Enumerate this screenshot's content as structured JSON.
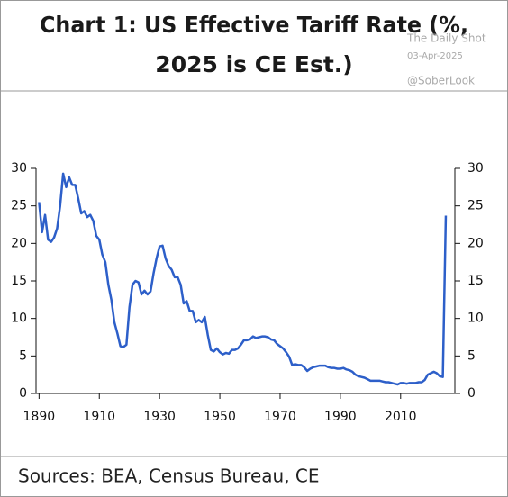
{
  "chart_data": {
    "type": "line",
    "title": [
      "Chart 1: US Effective Tariff Rate (%,",
      "2025 is CE Est.)"
    ],
    "watermark": [
      "The Daily Shot",
      "03-Apr-2025",
      "@SoberLook"
    ],
    "source": "Sources: BEA, Census Bureau, CE",
    "x": [
      1890,
      1891,
      1892,
      1893,
      1894,
      1895,
      1896,
      1897,
      1898,
      1899,
      1900,
      1901,
      1902,
      1903,
      1904,
      1905,
      1906,
      1907,
      1908,
      1909,
      1910,
      1911,
      1912,
      1913,
      1914,
      1915,
      1916,
      1917,
      1918,
      1919,
      1920,
      1921,
      1922,
      1923,
      1924,
      1925,
      1926,
      1927,
      1928,
      1929,
      1930,
      1931,
      1932,
      1933,
      1934,
      1935,
      1936,
      1937,
      1938,
      1939,
      1940,
      1941,
      1942,
      1943,
      1944,
      1945,
      1946,
      1947,
      1948,
      1949,
      1950,
      1951,
      1952,
      1953,
      1954,
      1955,
      1956,
      1957,
      1958,
      1959,
      1960,
      1961,
      1962,
      1963,
      1964,
      1965,
      1966,
      1967,
      1968,
      1969,
      1970,
      1971,
      1972,
      1973,
      1974,
      1975,
      1976,
      1977,
      1978,
      1979,
      1980,
      1981,
      1982,
      1983,
      1984,
      1985,
      1986,
      1987,
      1988,
      1989,
      1990,
      1991,
      1992,
      1993,
      1994,
      1995,
      1996,
      1997,
      1998,
      1999,
      2000,
      2001,
      2002,
      2003,
      2004,
      2005,
      2006,
      2007,
      2008,
      2009,
      2010,
      2011,
      2012,
      2013,
      2014,
      2015,
      2016,
      2017,
      2018,
      2019,
      2020,
      2021,
      2022,
      2023,
      2024,
      2025
    ],
    "series": [
      {
        "name": "US Effective Tariff Rate",
        "color": "#2d5fc9",
        "axis": "y",
        "values": [
          25.5,
          21.5,
          23.8,
          20.5,
          20.2,
          20.8,
          22,
          25,
          29.3,
          27.5,
          28.8,
          27.8,
          27.8,
          26,
          24,
          24.3,
          23.5,
          23.8,
          23,
          21,
          20.5,
          18.5,
          17.5,
          14.5,
          12.5,
          9.5,
          8,
          6.3,
          6.2,
          6.5,
          11.5,
          14.5,
          15,
          14.8,
          13.2,
          13.7,
          13.2,
          13.6,
          16,
          18,
          19.6,
          19.7,
          18,
          17,
          16.5,
          15.5,
          15.5,
          14.5,
          12,
          12.3,
          11,
          11,
          9.5,
          9.8,
          9.5,
          10.2,
          7.8,
          5.8,
          5.6,
          6,
          5.5,
          5.2,
          5.4,
          5.3,
          5.8,
          5.8,
          6,
          6.5,
          7.1,
          7.1,
          7.2,
          7.6,
          7.4,
          7.5,
          7.6,
          7.6,
          7.5,
          7.2,
          7.1,
          6.6,
          6.3,
          6,
          5.5,
          4.9,
          3.8,
          3.9,
          3.8,
          3.8,
          3.5,
          3,
          3.3,
          3.5,
          3.6,
          3.7,
          3.7,
          3.7,
          3.5,
          3.4,
          3.4,
          3.3,
          3.3,
          3.4,
          3.2,
          3.1,
          2.9,
          2.5,
          2.3,
          2.2,
          2.1,
          1.9,
          1.7,
          1.7,
          1.7,
          1.7,
          1.6,
          1.5,
          1.5,
          1.4,
          1.3,
          1.2,
          1.4,
          1.4,
          1.3,
          1.4,
          1.4,
          1.4,
          1.5,
          1.5,
          1.8,
          2.5,
          2.7,
          2.9,
          2.7,
          2.3,
          2.2,
          23.7
        ]
      }
    ],
    "xlim": [
      1889,
      2028
    ],
    "xticks": [
      1890,
      1910,
      1930,
      1950,
      1970,
      1990,
      2010
    ],
    "ylim": [
      0,
      30
    ],
    "yticks": [
      0,
      5,
      10,
      15,
      20,
      25,
      30
    ],
    "y2lim": [
      0,
      30
    ],
    "y2ticks": [
      0,
      5,
      10,
      15,
      20,
      25,
      30
    ]
  }
}
